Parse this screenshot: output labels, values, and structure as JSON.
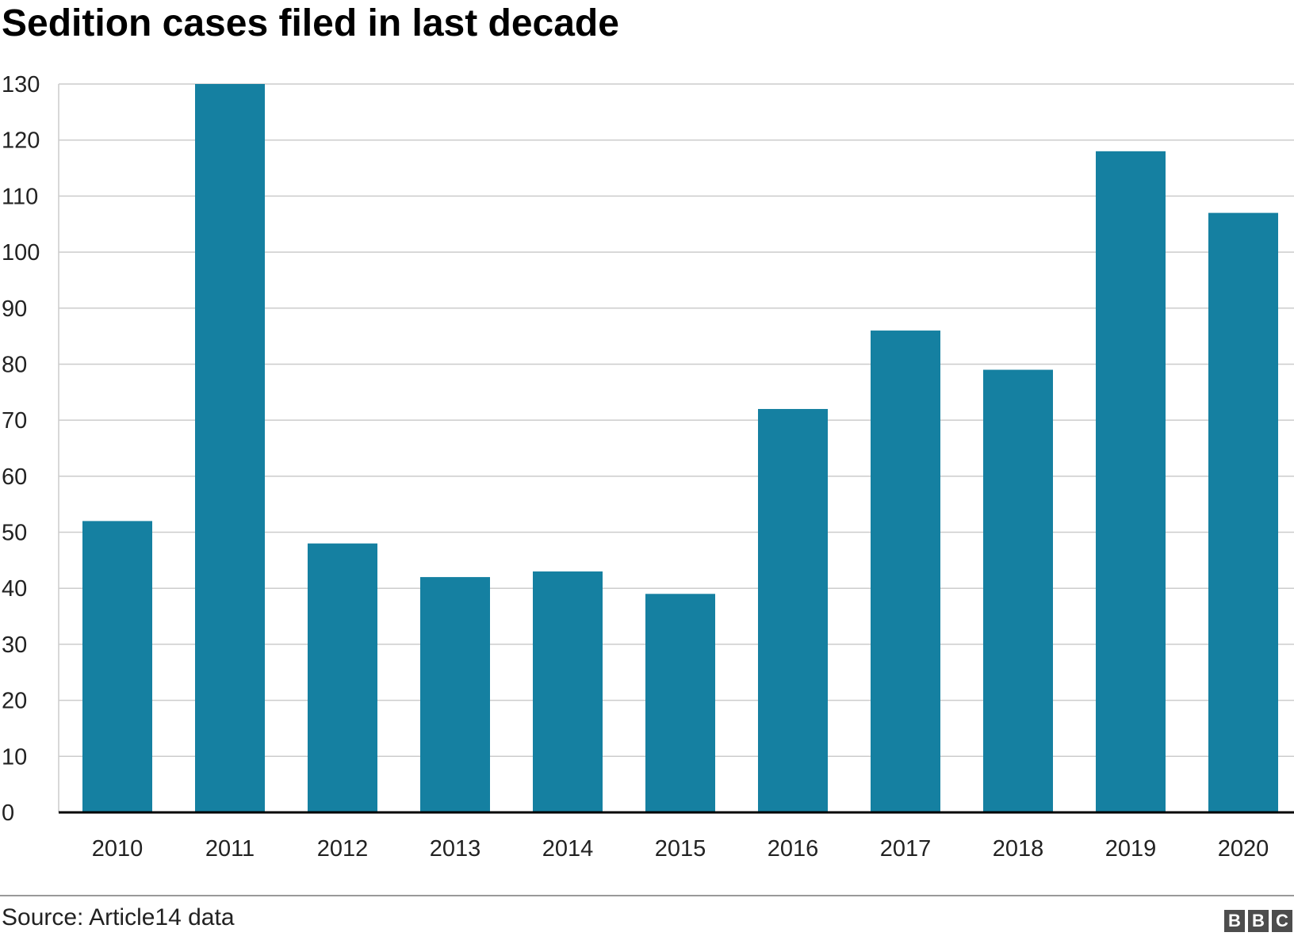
{
  "title": "Sedition cases filed in last decade",
  "source": "Source: Article14 data",
  "logo_text": "BBC",
  "colors": {
    "bar": "#1580a1",
    "grid": "#cccccc",
    "axis": "#000000"
  },
  "chart_data": {
    "type": "bar",
    "title": "Sedition cases filed in last decade",
    "xlabel": "",
    "ylabel": "",
    "categories": [
      "2010",
      "2011",
      "2012",
      "2013",
      "2014",
      "2015",
      "2016",
      "2017",
      "2018",
      "2019",
      "2020"
    ],
    "values": [
      52,
      130,
      48,
      42,
      43,
      39,
      72,
      86,
      79,
      118,
      107
    ],
    "ylim": [
      0,
      130
    ],
    "yticks": [
      0,
      10,
      20,
      30,
      40,
      50,
      60,
      70,
      80,
      90,
      100,
      110,
      120,
      130
    ],
    "grid": true,
    "legend": "none"
  }
}
